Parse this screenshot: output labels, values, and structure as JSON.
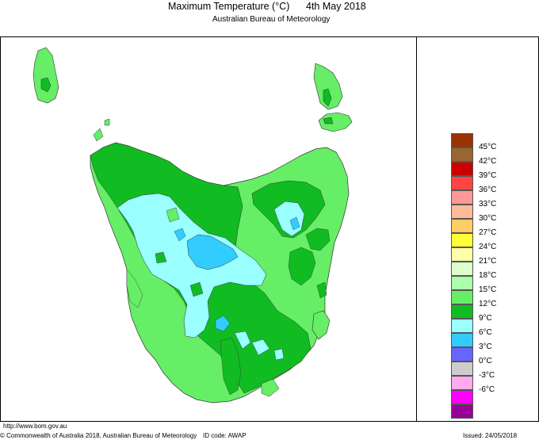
{
  "header": {
    "title": "Maximum Temperature (°C)",
    "date": "4th May 2018",
    "subtitle": "Australian Bureau of Meteorology"
  },
  "legend": [
    {
      "label": "45°C",
      "color": "#993300"
    },
    {
      "label": "42°C",
      "color": "#996633"
    },
    {
      "label": "39°C",
      "color": "#cc0000"
    },
    {
      "label": "36°C",
      "color": "#ff4444"
    },
    {
      "label": "33°C",
      "color": "#ff9999"
    },
    {
      "label": "30°C",
      "color": "#ffbb99"
    },
    {
      "label": "27°C",
      "color": "#ffcc66"
    },
    {
      "label": "24°C",
      "color": "#ffff33"
    },
    {
      "label": "21°C",
      "color": "#ffffaa"
    },
    {
      "label": "18°C",
      "color": "#ddffcc"
    },
    {
      "label": "15°C",
      "color": "#aaffaa"
    },
    {
      "label": "12°C",
      "color": "#66ee66"
    },
    {
      "label": "9°C",
      "color": "#11bb22"
    },
    {
      "label": "6°C",
      "color": "#99ffff"
    },
    {
      "label": "3°C",
      "color": "#33ccff"
    },
    {
      "label": "0°C",
      "color": "#6666ff"
    },
    {
      "label": "-3°C",
      "color": "#cccccc"
    },
    {
      "label": "-6°C",
      "color": "#ffaaee"
    },
    {
      "label": "",
      "color": "#ff00ff"
    },
    {
      "label": "",
      "color": "#990099"
    }
  ],
  "footer": {
    "url": "http://www.bom.gov.au",
    "copyright": "© Commonwealth of Australia 2018, Australian Bureau of Meteorology",
    "id_code": "ID code: AWAP",
    "issued": "Issued: 24/05/2018"
  }
}
